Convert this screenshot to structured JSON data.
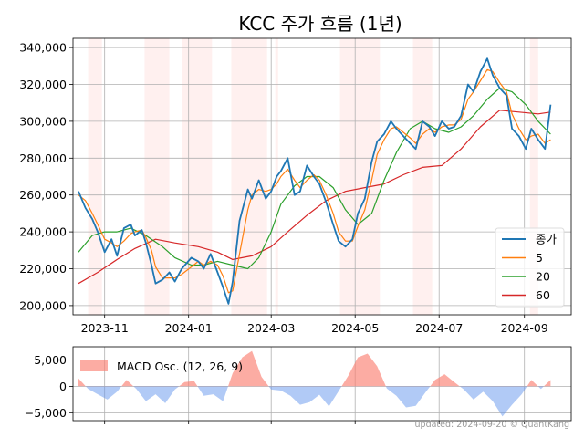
{
  "title": "KCC 주가 흐름 (1년)",
  "footer": "updated: 2024-09-20 © QuantKang",
  "colors": {
    "close": "#1f77b4",
    "ma5": "#ff7f0e",
    "ma20": "#2ca02c",
    "ma60": "#d62728",
    "osc_pos": "#fa8072",
    "osc_neg": "#6495ed",
    "shade": "#ffe4e1",
    "grid": "#b0b0b0"
  },
  "chart_data": [
    {
      "type": "line",
      "title": "KCC 주가 흐름 (1년)",
      "xlabel": "",
      "ylabel": "",
      "ylim": [
        195000,
        345000
      ],
      "xlim": [
        "2023-10-09",
        "2024-10-05"
      ],
      "grid": true,
      "legend_position": "lower-right",
      "x_ticks": [
        "2023-11",
        "2024-01",
        "2024-03",
        "2024-05",
        "2024-07",
        "2024-09"
      ],
      "x_tick_dates": [
        "2023-11-01",
        "2024-01-01",
        "2024-03-01",
        "2024-05-01",
        "2024-07-01",
        "2024-09-01"
      ],
      "y_ticks": [
        "200,000",
        "220,000",
        "240,000",
        "260,000",
        "280,000",
        "300,000",
        "320,000",
        "340,000"
      ],
      "y_tick_values": [
        200000,
        220000,
        240000,
        260000,
        280000,
        300000,
        320000,
        340000
      ],
      "shaded_periods": [
        [
          "2023-10-20",
          "2023-10-30"
        ],
        [
          "2023-11-30",
          "2023-12-18"
        ],
        [
          "2023-12-27",
          "2024-01-18"
        ],
        [
          "2024-02-01",
          "2024-02-27"
        ],
        [
          "2024-03-04",
          "2024-03-06"
        ],
        [
          "2024-04-20",
          "2024-05-19"
        ],
        [
          "2024-06-12",
          "2024-06-26"
        ],
        [
          "2024-09-05",
          "2024-09-11"
        ]
      ],
      "series": [
        {
          "name": "종가",
          "key": "close",
          "width": 1.8,
          "x": [
            "2023-10-13",
            "2023-10-18",
            "2023-10-23",
            "2023-10-27",
            "2023-11-01",
            "2023-11-06",
            "2023-11-10",
            "2023-11-15",
            "2023-11-20",
            "2023-11-23",
            "2023-11-28",
            "2023-12-01",
            "2023-12-05",
            "2023-12-08",
            "2023-12-13",
            "2023-12-18",
            "2023-12-22",
            "2023-12-27",
            "2024-01-03",
            "2024-01-08",
            "2024-01-12",
            "2024-01-17",
            "2024-01-22",
            "2024-01-26",
            "2024-01-30",
            "2024-02-02",
            "2024-02-07",
            "2024-02-13",
            "2024-02-16",
            "2024-02-21",
            "2024-02-26",
            "2024-03-01",
            "2024-03-05",
            "2024-03-08",
            "2024-03-13",
            "2024-03-18",
            "2024-03-22",
            "2024-03-27",
            "2024-04-01",
            "2024-04-05",
            "2024-04-10",
            "2024-04-15",
            "2024-04-19",
            "2024-04-24",
            "2024-04-29",
            "2024-05-03",
            "2024-05-08",
            "2024-05-13",
            "2024-05-17",
            "2024-05-22",
            "2024-05-27",
            "2024-05-31",
            "2024-06-05",
            "2024-06-10",
            "2024-06-14",
            "2024-06-19",
            "2024-06-24",
            "2024-06-28",
            "2024-07-03",
            "2024-07-08",
            "2024-07-12",
            "2024-07-17",
            "2024-07-22",
            "2024-07-26",
            "2024-07-31",
            "2024-08-05",
            "2024-08-09",
            "2024-08-14",
            "2024-08-19",
            "2024-08-23",
            "2024-08-28",
            "2024-09-02",
            "2024-09-06",
            "2024-09-11",
            "2024-09-16",
            "2024-09-20"
          ],
          "values": [
            262000,
            253000,
            247000,
            240000,
            229000,
            236000,
            227000,
            242000,
            244000,
            238000,
            241000,
            234000,
            222000,
            212000,
            214000,
            218000,
            213000,
            220000,
            226000,
            224000,
            220000,
            228000,
            218000,
            210000,
            201000,
            213000,
            246000,
            263000,
            258000,
            268000,
            258000,
            262000,
            270000,
            273000,
            280000,
            260000,
            262000,
            276000,
            270000,
            266000,
            256000,
            244000,
            235000,
            232000,
            236000,
            250000,
            258000,
            278000,
            289000,
            293000,
            300000,
            296000,
            292000,
            288000,
            285000,
            300000,
            297000,
            292000,
            300000,
            296000,
            297000,
            303000,
            320000,
            316000,
            327000,
            334000,
            325000,
            318000,
            314000,
            296000,
            292000,
            285000,
            296000,
            290000,
            285000,
            309000
          ]
        },
        {
          "name": "5",
          "key": "ma5",
          "width": 1.2,
          "x": [
            "2023-10-13",
            "2023-10-18",
            "2023-10-23",
            "2023-10-27",
            "2023-11-01",
            "2023-11-06",
            "2023-11-10",
            "2023-11-15",
            "2023-11-20",
            "2023-11-23",
            "2023-11-28",
            "2023-12-01",
            "2023-12-05",
            "2023-12-08",
            "2023-12-13",
            "2023-12-18",
            "2023-12-22",
            "2023-12-27",
            "2024-01-03",
            "2024-01-08",
            "2024-01-12",
            "2024-01-17",
            "2024-01-22",
            "2024-01-26",
            "2024-01-30",
            "2024-02-02",
            "2024-02-07",
            "2024-02-13",
            "2024-02-16",
            "2024-02-21",
            "2024-02-26",
            "2024-03-01",
            "2024-03-05",
            "2024-03-08",
            "2024-03-13",
            "2024-03-18",
            "2024-03-22",
            "2024-03-27",
            "2024-04-01",
            "2024-04-05",
            "2024-04-10",
            "2024-04-15",
            "2024-04-19",
            "2024-04-24",
            "2024-04-29",
            "2024-05-03",
            "2024-05-08",
            "2024-05-13",
            "2024-05-17",
            "2024-05-22",
            "2024-05-27",
            "2024-05-31",
            "2024-06-05",
            "2024-06-10",
            "2024-06-14",
            "2024-06-19",
            "2024-06-24",
            "2024-06-28",
            "2024-07-03",
            "2024-07-08",
            "2024-07-12",
            "2024-07-17",
            "2024-07-22",
            "2024-07-26",
            "2024-07-31",
            "2024-08-05",
            "2024-08-09",
            "2024-08-14",
            "2024-08-19",
            "2024-08-23",
            "2024-08-28",
            "2024-09-02",
            "2024-09-06",
            "2024-09-11",
            "2024-09-16",
            "2024-09-20"
          ],
          "values": [
            260000,
            257000,
            250000,
            244000,
            236000,
            234000,
            232000,
            235000,
            239000,
            240000,
            241000,
            237000,
            230000,
            221000,
            215000,
            215000,
            215000,
            217000,
            221000,
            224000,
            222000,
            224000,
            222000,
            216000,
            207000,
            208000,
            228000,
            252000,
            260000,
            263000,
            262000,
            263000,
            266000,
            270000,
            274000,
            268000,
            264000,
            268000,
            271000,
            268000,
            260000,
            250000,
            240000,
            235000,
            235000,
            243000,
            252000,
            268000,
            282000,
            290000,
            296000,
            297000,
            294000,
            291000,
            288000,
            293000,
            296000,
            294000,
            297000,
            298000,
            298000,
            301000,
            312000,
            316000,
            322000,
            328000,
            327000,
            321000,
            316000,
            304000,
            296000,
            290000,
            292000,
            293000,
            288000,
            290000
          ]
        },
        {
          "name": "20",
          "key": "ma20",
          "width": 1.2,
          "x": [
            "2023-10-13",
            "2023-10-23",
            "2023-11-01",
            "2023-11-10",
            "2023-11-20",
            "2023-12-01",
            "2023-12-13",
            "2023-12-22",
            "2024-01-03",
            "2024-01-12",
            "2024-01-22",
            "2024-02-02",
            "2024-02-13",
            "2024-02-21",
            "2024-03-01",
            "2024-03-08",
            "2024-03-18",
            "2024-03-27",
            "2024-04-05",
            "2024-04-15",
            "2024-04-24",
            "2024-05-03",
            "2024-05-13",
            "2024-05-22",
            "2024-05-31",
            "2024-06-10",
            "2024-06-19",
            "2024-06-28",
            "2024-07-08",
            "2024-07-17",
            "2024-07-26",
            "2024-08-05",
            "2024-08-14",
            "2024-08-23",
            "2024-09-02",
            "2024-09-11",
            "2024-09-20"
          ],
          "values": [
            229000,
            238000,
            240000,
            240000,
            242000,
            238000,
            232000,
            226000,
            222000,
            222000,
            224000,
            222000,
            220000,
            226000,
            240000,
            255000,
            265000,
            270000,
            270000,
            264000,
            252000,
            244000,
            250000,
            268000,
            283000,
            296000,
            300000,
            296000,
            294000,
            297000,
            303000,
            312000,
            318000,
            316000,
            309000,
            300000,
            293000
          ]
        },
        {
          "name": "60",
          "key": "ma60",
          "width": 1.2,
          "x": [
            "2023-10-13",
            "2023-10-27",
            "2023-11-10",
            "2023-11-23",
            "2023-12-08",
            "2023-12-22",
            "2024-01-08",
            "2024-01-22",
            "2024-02-02",
            "2024-02-16",
            "2024-03-01",
            "2024-03-13",
            "2024-03-27",
            "2024-04-10",
            "2024-04-24",
            "2024-05-08",
            "2024-05-22",
            "2024-06-05",
            "2024-06-19",
            "2024-07-03",
            "2024-07-17",
            "2024-07-31",
            "2024-08-14",
            "2024-08-28",
            "2024-09-11",
            "2024-09-20"
          ],
          "values": [
            212000,
            218000,
            225000,
            231000,
            236000,
            234000,
            232000,
            229000,
            225000,
            227000,
            232000,
            240000,
            249000,
            257000,
            262000,
            264000,
            266000,
            271000,
            275000,
            276000,
            285000,
            297000,
            306000,
            305000,
            304000,
            305000
          ]
        }
      ]
    },
    {
      "type": "area",
      "xlabel": "",
      "ylabel": "",
      "ylim": [
        -6500,
        7500
      ],
      "grid": true,
      "legend_position": "upper-left",
      "y_ticks": [
        "5,000",
        "0",
        "−5,000"
      ],
      "y_tick_values": [
        5000,
        0,
        -5000
      ],
      "series": [
        {
          "name": "MACD Osc. (12, 26, 9)",
          "x": [
            "2023-10-13",
            "2023-10-20",
            "2023-10-27",
            "2023-11-03",
            "2023-11-10",
            "2023-11-17",
            "2023-11-24",
            "2023-12-01",
            "2023-12-08",
            "2023-12-15",
            "2023-12-22",
            "2023-12-29",
            "2024-01-05",
            "2024-01-12",
            "2024-01-19",
            "2024-01-26",
            "2024-02-02",
            "2024-02-09",
            "2024-02-16",
            "2024-02-23",
            "2024-03-01",
            "2024-03-08",
            "2024-03-15",
            "2024-03-22",
            "2024-03-29",
            "2024-04-05",
            "2024-04-12",
            "2024-04-19",
            "2024-04-26",
            "2024-05-03",
            "2024-05-10",
            "2024-05-17",
            "2024-05-24",
            "2024-05-31",
            "2024-06-07",
            "2024-06-14",
            "2024-06-21",
            "2024-06-28",
            "2024-07-05",
            "2024-07-12",
            "2024-07-19",
            "2024-07-26",
            "2024-08-02",
            "2024-08-09",
            "2024-08-16",
            "2024-08-23",
            "2024-08-30",
            "2024-09-06",
            "2024-09-13",
            "2024-09-20"
          ],
          "values": [
            1500,
            -500,
            -1500,
            -2500,
            -1000,
            1200,
            -500,
            -2800,
            -1500,
            -3200,
            -600,
            800,
            1000,
            -1800,
            -1500,
            -2800,
            2500,
            5500,
            6700,
            1800,
            -600,
            -800,
            -1800,
            -3500,
            -3000,
            -1600,
            -3800,
            -900,
            2000,
            5500,
            6200,
            3800,
            -400,
            -1800,
            -4000,
            -3700,
            -1200,
            1200,
            2300,
            800,
            -600,
            -2500,
            -1000,
            -2800,
            -5700,
            -3500,
            -1500,
            1200,
            -500,
            1200
          ]
        }
      ]
    }
  ]
}
